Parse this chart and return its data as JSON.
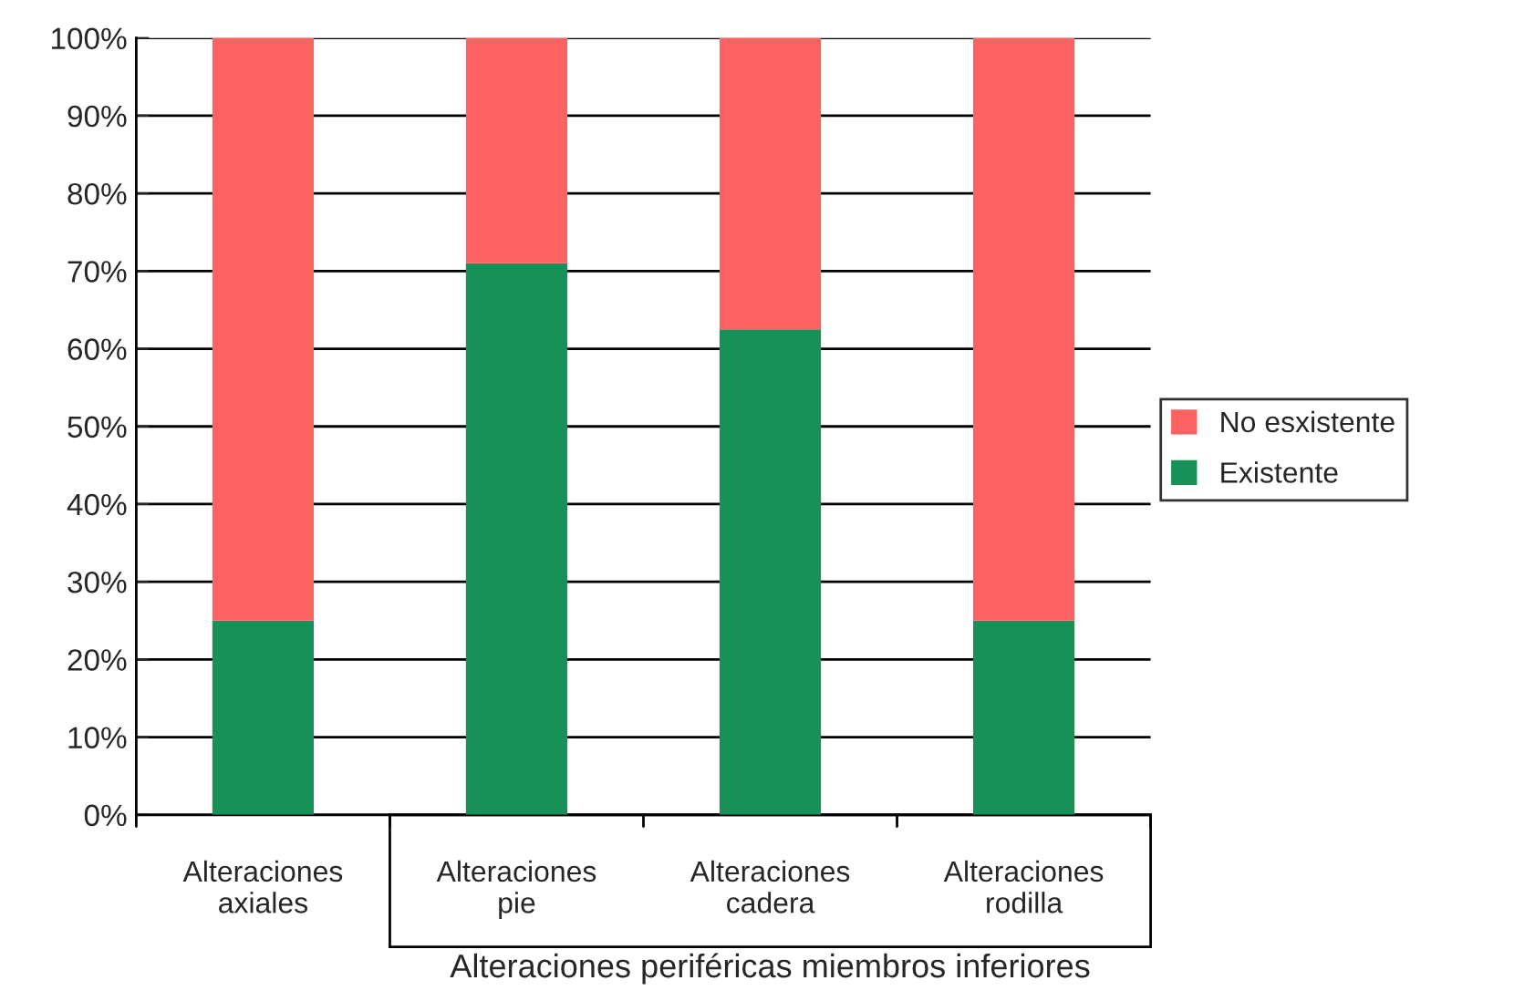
{
  "chart_data": {
    "type": "bar",
    "stacked": true,
    "categories": [
      "Alteraciones\naxiales",
      "Alteraciones\npie",
      "Alteraciones\ncadera",
      "Alteraciones\nrodilla"
    ],
    "series": [
      {
        "name": "Existente",
        "color": "#179157",
        "values": [
          25,
          71,
          62.5,
          25
        ]
      },
      {
        "name": "No esxistente",
        "color": "#fc6262",
        "values": [
          75,
          29,
          37.5,
          75
        ]
      }
    ],
    "xlabel": "Alteraciones periféricas miembros inferiores",
    "ylim": [
      0,
      100
    ],
    "yticks": [
      {
        "value": 0,
        "label": "0%"
      },
      {
        "value": 10,
        "label": "10%"
      },
      {
        "value": 20,
        "label": "20%"
      },
      {
        "value": 30,
        "label": "30%"
      },
      {
        "value": 40,
        "label": "40%"
      },
      {
        "value": 50,
        "label": "50%"
      },
      {
        "value": 60,
        "label": "60%"
      },
      {
        "value": 70,
        "label": "70%"
      },
      {
        "value": 80,
        "label": "80%"
      },
      {
        "value": 90,
        "label": "90%"
      },
      {
        "value": 100,
        "label": "100%"
      }
    ],
    "grid": "y",
    "legend": "right"
  }
}
